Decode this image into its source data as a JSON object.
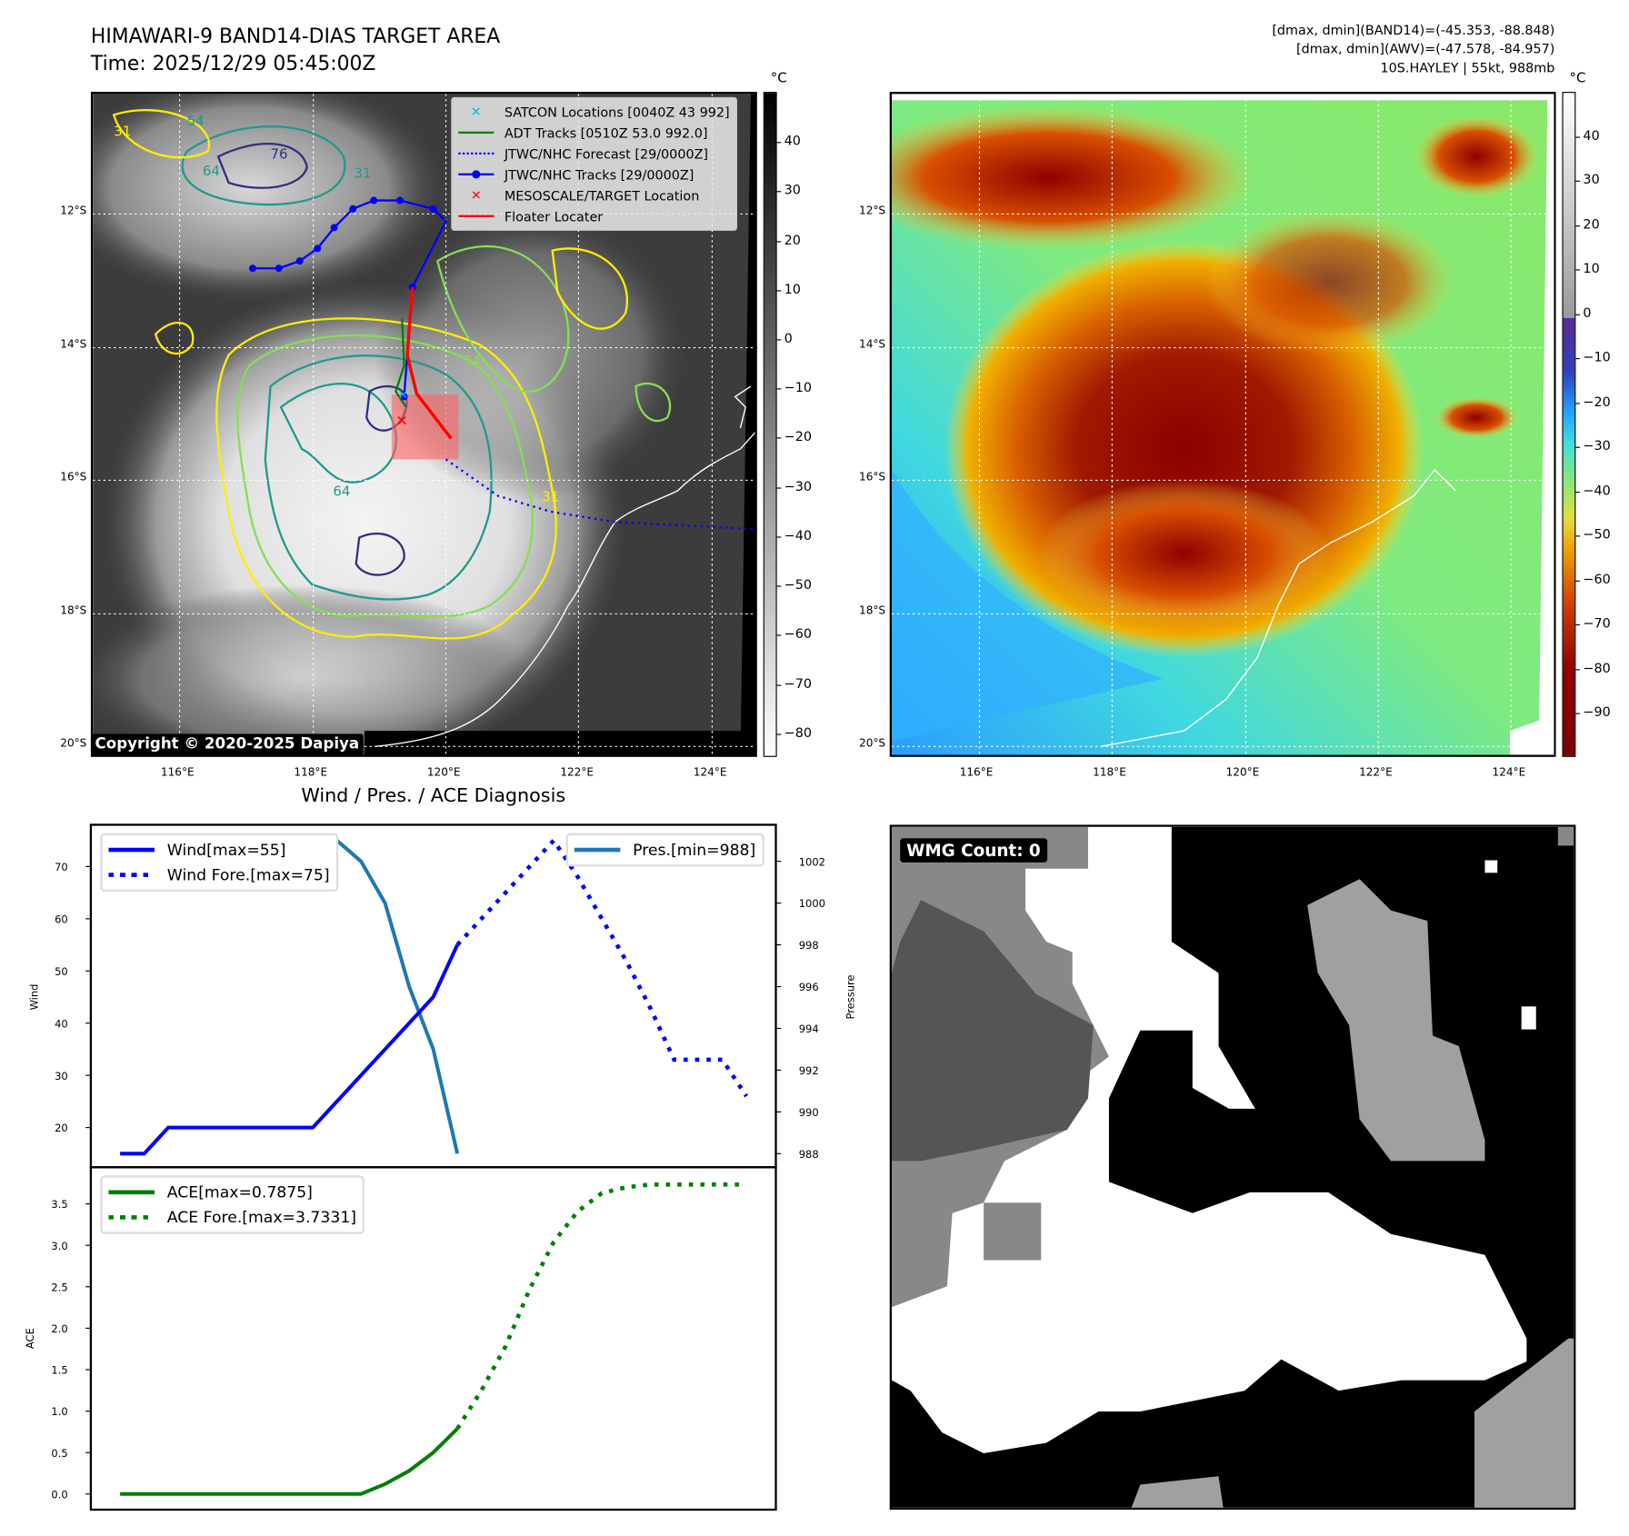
{
  "header": {
    "title": "HIMAWARI-9 BAND14-DIAS TARGET AREA",
    "time": "Time: 2025/12/29 05:45:00Z",
    "stats": [
      "[dmax, dmin](BAND14)=(-45.353, -88.848)",
      "[dmax, dmin](AWV)=(-47.578, -84.957)",
      "10S.HAYLEY | 55kt, 988mb"
    ]
  },
  "map_ir": {
    "lat_labels": [
      "12°S",
      "14°S",
      "16°S",
      "18°S",
      "20°S"
    ],
    "lon_labels": [
      "116°E",
      "118°E",
      "120°E",
      "122°E",
      "124°E"
    ],
    "copyright": "Copyright © 2020-2025 Dapiya",
    "contour_labels": [
      "31",
      "54",
      "64",
      "76",
      "31",
      "54",
      "64",
      "31"
    ],
    "legend": [
      {
        "label": "SATCON Locations [0040Z 43 992]",
        "color": "#00c0c0",
        "style": "x"
      },
      {
        "label": "ADT Tracks [0510Z 53.0 992.0]",
        "color": "#008000",
        "style": "line"
      },
      {
        "label": "JTWC/NHC Forecast [29/0000Z]",
        "color": "#0000ff",
        "style": "dotted"
      },
      {
        "label": "JTWC/NHC Tracks [29/0000Z]",
        "color": "#0000ff",
        "style": "line-dot"
      },
      {
        "label": "MESOSCALE/TARGET Location",
        "color": "#ff0000",
        "style": "x"
      },
      {
        "label": "Floater Locater",
        "color": "#ff0000",
        "style": "line"
      }
    ],
    "colorbar": {
      "unit": "°C",
      "ticks": [
        "40",
        "30",
        "20",
        "10",
        "0",
        "−10",
        "−20",
        "−30",
        "−40",
        "−50",
        "−60",
        "−70",
        "−80"
      ],
      "tick_values": [
        40,
        30,
        20,
        10,
        0,
        -10,
        -20,
        -30,
        -40,
        -50,
        -60,
        -70,
        -80
      ],
      "range": [
        50.2,
        -84.7
      ]
    }
  },
  "map_awv": {
    "lat_labels": [
      "12°S",
      "14°S",
      "16°S",
      "18°S",
      "20°S"
    ],
    "lon_labels": [
      "116°E",
      "118°E",
      "120°E",
      "122°E",
      "124°E"
    ],
    "colorbar": {
      "unit": "°C",
      "ticks": [
        "40",
        "30",
        "20",
        "10",
        "0",
        "−10",
        "−20",
        "−30",
        "−40",
        "−50",
        "−60",
        "−70",
        "−80",
        "−90"
      ],
      "tick_values": [
        40,
        30,
        20,
        10,
        0,
        -10,
        -20,
        -30,
        -40,
        -50,
        -60,
        -70,
        -80,
        -90
      ],
      "range": [
        50.1,
        -99.8
      ]
    }
  },
  "wmg": {
    "label": "WMG Count: 0"
  },
  "chart_data": {
    "type": "line",
    "title": "Wind / Pres. / ACE Diagnosis",
    "x": [
      0,
      1,
      2,
      3,
      4,
      5,
      6,
      7,
      8,
      9,
      10,
      11,
      12,
      13,
      14,
      15,
      16,
      17,
      18,
      19,
      20,
      21,
      22,
      23,
      24,
      25,
      26
    ],
    "wind_panel": {
      "ylabel": "Wind",
      "ylim": [
        12.4,
        78
      ],
      "yticks": [
        20,
        30,
        40,
        50,
        60,
        70
      ],
      "y2label": "Pressure",
      "y2lim": [
        987.35,
        1003.75
      ],
      "y2ticks": [
        988,
        990,
        992,
        994,
        996,
        998,
        1000,
        1002
      ],
      "series": [
        {
          "name": "Wind[max=55]",
          "axis": "left",
          "color": "#0000ff",
          "style": "solid",
          "x": [
            0,
            1,
            2,
            3,
            4,
            5,
            6,
            7,
            8,
            9,
            10,
            11,
            12,
            13,
            14
          ],
          "values": [
            15,
            15,
            20,
            20,
            20,
            20,
            20,
            20,
            20,
            25,
            30,
            35,
            40,
            45,
            55
          ]
        },
        {
          "name": "Wind Fore.[max=75]",
          "axis": "left",
          "color": "#0000ff",
          "style": "dotted",
          "x": [
            14,
            15,
            16,
            17,
            18,
            19,
            20,
            21,
            22,
            23,
            24,
            25,
            26
          ],
          "values": [
            55,
            60,
            65,
            70,
            75,
            68,
            60,
            52,
            43,
            33,
            33,
            33,
            26
          ]
        },
        {
          "name": "Pres.[min=988]",
          "axis": "right",
          "color": "#1f77b4",
          "style": "solid",
          "x": [
            0,
            1,
            2,
            3,
            4,
            5,
            6,
            7,
            8,
            9,
            10,
            11,
            12,
            13,
            14
          ],
          "values": [
            1003,
            1003,
            1003,
            1003,
            1003,
            1003,
            1003,
            1003,
            1003,
            1003,
            1002,
            1000,
            996,
            993,
            988
          ]
        }
      ]
    },
    "ace_panel": {
      "ylabel": "ACE",
      "ylim": [
        -0.19,
        3.94
      ],
      "yticks": [
        "0.0",
        "0.5",
        "1.0",
        "1.5",
        "2.0",
        "2.5",
        "3.0",
        "3.5"
      ],
      "series": [
        {
          "name": "ACE[max=0.7875]",
          "color": "#008000",
          "style": "solid",
          "x": [
            0,
            1,
            2,
            3,
            4,
            5,
            6,
            7,
            8,
            9,
            10,
            11,
            12,
            13,
            14
          ],
          "values": [
            0,
            0,
            0,
            0,
            0,
            0,
            0,
            0,
            0,
            0,
            0,
            0.12,
            0.28,
            0.5,
            0.7875
          ]
        },
        {
          "name": "ACE Fore.[max=3.7331]",
          "color": "#008000",
          "style": "dotted",
          "x": [
            14,
            15,
            16,
            17,
            18,
            19,
            20,
            21,
            22,
            23,
            24,
            25,
            26
          ],
          "values": [
            0.7875,
            1.25,
            1.78,
            2.47,
            3.04,
            3.41,
            3.63,
            3.7,
            3.7331,
            3.7331,
            3.7331,
            3.7331,
            3.7331
          ]
        }
      ]
    }
  }
}
